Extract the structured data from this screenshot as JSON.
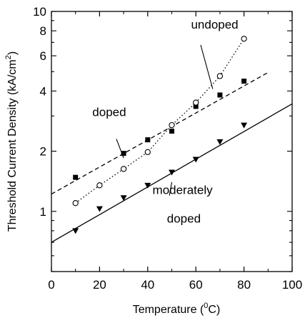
{
  "chart_data": {
    "type": "scatter",
    "title": "",
    "xlabel": "Temperature (",
    "xlabel_sup": "0",
    "xlabel_suffix": "C)",
    "ylabel": "Threshold Current Density (kA/cm",
    "ylabel_sup": "2",
    "ylabel_suffix": ")",
    "xlim": [
      0,
      100
    ],
    "ylim": [
      0.5,
      10
    ],
    "y_scale": "log",
    "grid": false,
    "x_ticks": [
      {
        "value": 0,
        "label": "0"
      },
      {
        "value": 20,
        "label": "20"
      },
      {
        "value": 40,
        "label": "40"
      },
      {
        "value": 60,
        "label": "60"
      },
      {
        "value": 80,
        "label": "80"
      },
      {
        "value": 100,
        "label": "100"
      }
    ],
    "y_ticks": [
      {
        "value": 1,
        "label": "1"
      },
      {
        "value": 2,
        "label": "2"
      },
      {
        "value": 4,
        "label": "4"
      },
      {
        "value": 6,
        "label": "6"
      },
      {
        "value": 8,
        "label": "8"
      },
      {
        "value": 10,
        "label": "10"
      }
    ],
    "series": [
      {
        "key": "doped",
        "marker": "filled-square",
        "color": "#000000",
        "x": [
          10,
          30,
          40,
          50,
          60,
          70,
          80
        ],
        "y": [
          1.48,
          1.95,
          2.28,
          2.52,
          3.35,
          3.82,
          4.48
        ],
        "fit": {
          "style": "dashed",
          "x": [
            0,
            90
          ],
          "y": [
            1.22,
            4.95
          ]
        }
      },
      {
        "key": "undoped",
        "marker": "open-circle",
        "color": "#000000",
        "x": [
          10,
          20,
          30,
          40,
          50,
          60,
          70,
          80
        ],
        "y": [
          1.1,
          1.35,
          1.63,
          1.98,
          2.7,
          3.5,
          4.75,
          7.3
        ],
        "fit": {
          "style": "dotted",
          "x": [
            10,
            20,
            30,
            40,
            50,
            60,
            70,
            80
          ],
          "y": [
            1.1,
            1.35,
            1.63,
            1.98,
            2.7,
            3.5,
            4.75,
            7.3
          ]
        }
      },
      {
        "key": "moderately doped",
        "marker": "filled-triangle-down",
        "color": "#000000",
        "x": [
          10,
          20,
          30,
          40,
          50,
          60,
          70,
          80
        ],
        "y": [
          0.8,
          1.03,
          1.17,
          1.35,
          1.57,
          1.82,
          2.23,
          2.7
        ],
        "fit": {
          "style": "solid",
          "x": [
            0,
            100
          ],
          "y": [
            0.7,
            3.45
          ]
        }
      }
    ],
    "annotations": [
      {
        "text": "undoped",
        "x": 58,
        "y": 8.2,
        "pointer": [
          [
            62,
            6.8
          ],
          [
            67,
            4.1
          ]
        ]
      },
      {
        "text": "doped",
        "x": 17,
        "y": 3.0,
        "pointer": [
          [
            27,
            2.3
          ],
          [
            30,
            1.85
          ]
        ]
      },
      {
        "text": "moderately",
        "x": 42,
        "y": 1.22,
        "pointer": null
      },
      {
        "text": "doped",
        "x": 48,
        "y": 0.88,
        "pointer": [
          [
            50,
            1.4
          ],
          [
            49,
            1.2
          ]
        ]
      }
    ]
  }
}
